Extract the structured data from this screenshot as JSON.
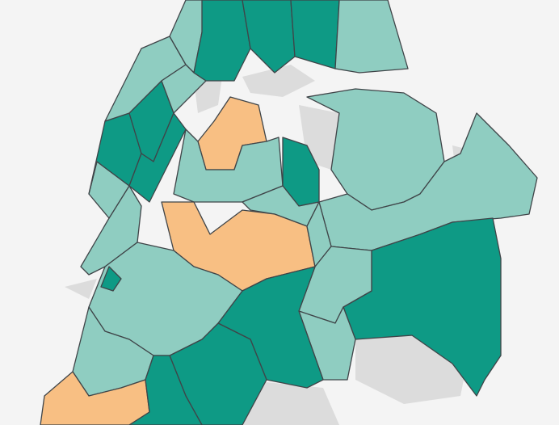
{
  "map": {
    "background_color": "#f4f4f4",
    "water_and_parks_color": "#dcdcdc",
    "border_color": "#3f4448",
    "categories": [
      {
        "key": "high",
        "color": "#0e9a85"
      },
      {
        "key": "medium",
        "color": "#8fcdc1"
      },
      {
        "key": "low",
        "color": "#f8bf83"
      }
    ]
  }
}
